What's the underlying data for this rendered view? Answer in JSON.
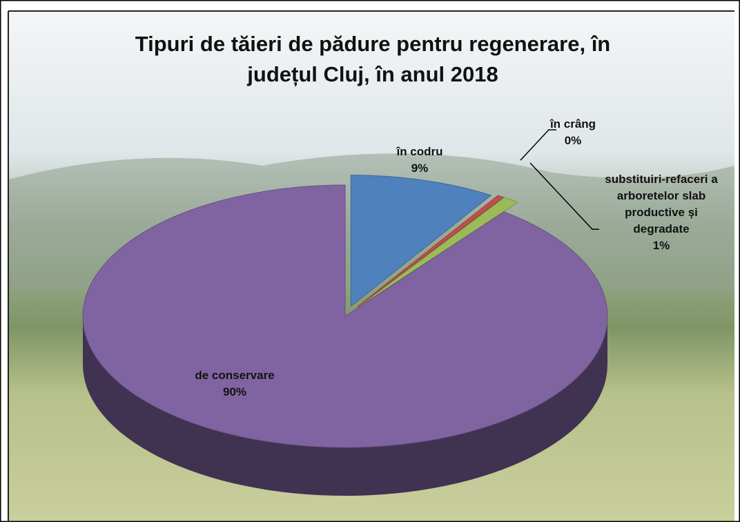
{
  "chart_data": {
    "type": "pie",
    "title": "Tipuri de tăieri de pădure pentru regenerare, în județul Cluj, în anul 2018",
    "categories": [
      "în codru",
      "în crâng",
      "substituiri-refaceri a arboretelor slab productive și degradate",
      "de conservare"
    ],
    "values": [
      9,
      0.4,
      1,
      90
    ],
    "value_labels": [
      "9%",
      "0%",
      "1%",
      "90%"
    ],
    "colors": [
      "#4f81bd",
      "#c0504d",
      "#9bbb59",
      "#8064a2"
    ]
  }
}
